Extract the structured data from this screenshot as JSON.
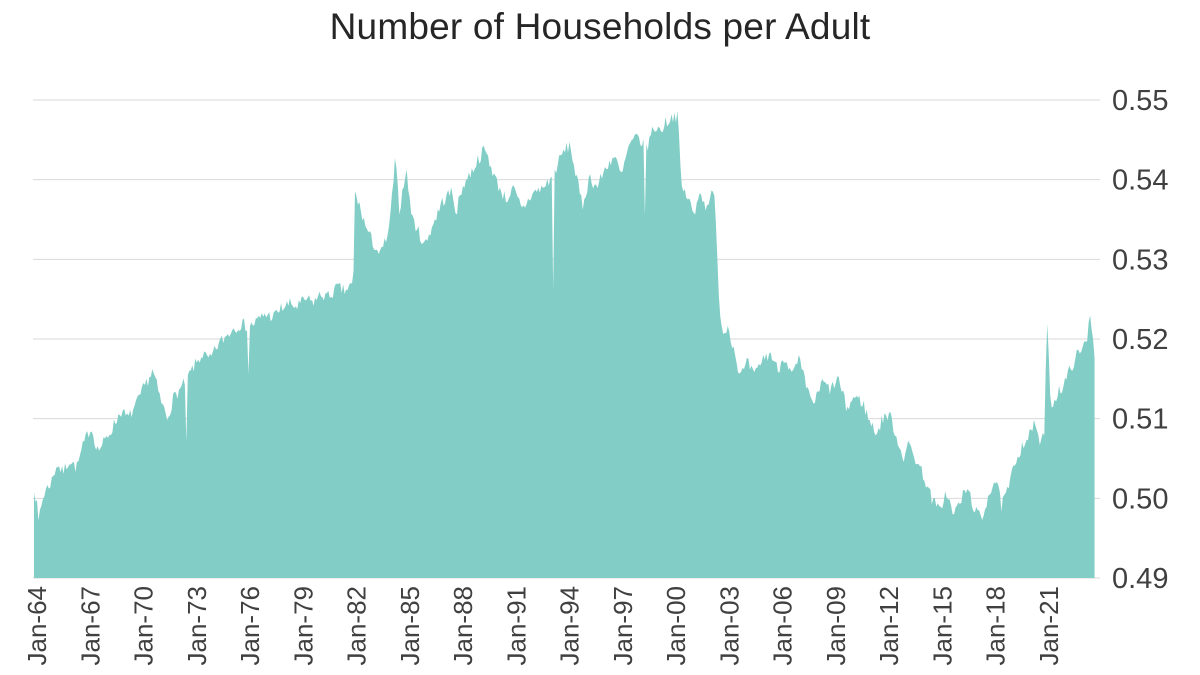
{
  "title": "Number of Households per Adult",
  "colors": {
    "area": "#82CEC7",
    "gridline": "#DADADA",
    "axis_text": "#404040",
    "title_text": "#262626",
    "background": "#FFFFFF"
  },
  "chart_data": {
    "type": "area",
    "title": "Number of Households per Adult",
    "series_name": "Number of Households per Adult",
    "x_unit": "month",
    "sampling": "monthly, Jan-1964 through late 2023",
    "x_tick_labels": [
      "Jan-64",
      "Jan-67",
      "Jan-70",
      "Jan-73",
      "Jan-76",
      "Jan-79",
      "Jan-82",
      "Jan-85",
      "Jan-88",
      "Jan-91",
      "Jan-94",
      "Jan-97",
      "Jan-00",
      "Jan-03",
      "Jan-06",
      "Jan-09",
      "Jan-12",
      "Jan-15",
      "Jan-18",
      "Jan-21"
    ],
    "x_tick_start_year": 1964,
    "x_tick_interval_years": 3,
    "y_ticks": [
      0.49,
      0.5,
      0.51,
      0.52,
      0.53,
      0.54,
      0.55
    ],
    "ylim": [
      0.49,
      0.55
    ],
    "x_range_years": [
      1964.0,
      2023.75
    ],
    "grid": "horizontal",
    "legend": "none",
    "ylabel": "",
    "xlabel": "",
    "anchors": [
      [
        1964.0,
        0.5015
      ],
      [
        1964.25,
        0.4978
      ],
      [
        1964.6,
        0.5008
      ],
      [
        1965.0,
        0.5022
      ],
      [
        1965.3,
        0.5044
      ],
      [
        1965.6,
        0.5032
      ],
      [
        1966.0,
        0.5048
      ],
      [
        1966.4,
        0.5038
      ],
      [
        1966.8,
        0.5068
      ],
      [
        1967.2,
        0.509
      ],
      [
        1967.6,
        0.506
      ],
      [
        1968.0,
        0.5072
      ],
      [
        1968.4,
        0.5088
      ],
      [
        1968.9,
        0.511
      ],
      [
        1969.3,
        0.51
      ],
      [
        1969.8,
        0.5119
      ],
      [
        1970.3,
        0.5144
      ],
      [
        1970.7,
        0.516
      ],
      [
        1971.1,
        0.5125
      ],
      [
        1971.5,
        0.5101
      ],
      [
        1971.9,
        0.5128
      ],
      [
        1972.3,
        0.5138
      ],
      [
        1973.0,
        0.5165
      ],
      [
        1973.5,
        0.5181
      ],
      [
        1973.9,
        0.5173
      ],
      [
        1974.4,
        0.5194
      ],
      [
        1974.8,
        0.5203
      ],
      [
        1975.2,
        0.5213
      ],
      [
        1975.7,
        0.5219
      ],
      [
        1976.1,
        0.5215
      ],
      [
        1976.6,
        0.5223
      ],
      [
        1977.0,
        0.5231
      ],
      [
        1977.5,
        0.5228
      ],
      [
        1977.9,
        0.5238
      ],
      [
        1978.4,
        0.5244
      ],
      [
        1978.8,
        0.524
      ],
      [
        1979.3,
        0.525
      ],
      [
        1979.7,
        0.5246
      ],
      [
        1980.2,
        0.5256
      ],
      [
        1980.6,
        0.5253
      ],
      [
        1981.1,
        0.5265
      ],
      [
        1981.5,
        0.526
      ],
      [
        1981.99,
        0.5269
      ],
      [
        1982.08,
        0.5384
      ],
      [
        1982.4,
        0.5362
      ],
      [
        1982.7,
        0.534
      ],
      [
        1983.0,
        0.5325
      ],
      [
        1983.5,
        0.5305
      ],
      [
        1984.0,
        0.5335
      ],
      [
        1984.35,
        0.5425
      ],
      [
        1984.6,
        0.536
      ],
      [
        1984.95,
        0.5415
      ],
      [
        1985.3,
        0.5352
      ],
      [
        1986.0,
        0.5318
      ],
      [
        1986.5,
        0.5345
      ],
      [
        1987.0,
        0.5372
      ],
      [
        1987.5,
        0.5385
      ],
      [
        1987.8,
        0.536
      ],
      [
        1988.2,
        0.5395
      ],
      [
        1988.6,
        0.5408
      ],
      [
        1989.0,
        0.5425
      ],
      [
        1989.4,
        0.5438
      ],
      [
        1990.1,
        0.5395
      ],
      [
        1990.6,
        0.5375
      ],
      [
        1991.0,
        0.5388
      ],
      [
        1991.5,
        0.5362
      ],
      [
        1992.1,
        0.5383
      ],
      [
        1992.7,
        0.539
      ],
      [
        1993.2,
        0.5404
      ],
      [
        1993.8,
        0.5434
      ],
      [
        1994.2,
        0.5444
      ],
      [
        1994.5,
        0.5409
      ],
      [
        1994.9,
        0.5366
      ],
      [
        1995.3,
        0.5404
      ],
      [
        1995.7,
        0.539
      ],
      [
        1996.3,
        0.5419
      ],
      [
        1996.7,
        0.5429
      ],
      [
        1997.1,
        0.5404
      ],
      [
        1997.5,
        0.5441
      ],
      [
        1998.0,
        0.5454
      ],
      [
        1998.5,
        0.5438
      ],
      [
        1998.9,
        0.5466
      ],
      [
        1999.3,
        0.5462
      ],
      [
        1999.6,
        0.5472
      ],
      [
        2000.05,
        0.5481
      ],
      [
        2000.3,
        0.5478
      ],
      [
        2000.45,
        0.5392
      ],
      [
        2000.9,
        0.5375
      ],
      [
        2001.2,
        0.5352
      ],
      [
        2001.5,
        0.539
      ],
      [
        2001.8,
        0.5365
      ],
      [
        2002.1,
        0.538
      ],
      [
        2002.35,
        0.5378
      ],
      [
        2002.5,
        0.5295
      ],
      [
        2002.65,
        0.5235
      ],
      [
        2002.85,
        0.5205
      ],
      [
        2003.1,
        0.5218
      ],
      [
        2003.4,
        0.519
      ],
      [
        2003.8,
        0.5153
      ],
      [
        2004.2,
        0.517
      ],
      [
        2004.6,
        0.5153
      ],
      [
        2005.0,
        0.5174
      ],
      [
        2005.5,
        0.5182
      ],
      [
        2005.9,
        0.5161
      ],
      [
        2006.3,
        0.518
      ],
      [
        2006.7,
        0.5153
      ],
      [
        2007.1,
        0.5174
      ],
      [
        2007.6,
        0.5132
      ],
      [
        2008.0,
        0.512
      ],
      [
        2008.4,
        0.5146
      ],
      [
        2008.9,
        0.5136
      ],
      [
        2009.3,
        0.5151
      ],
      [
        2009.8,
        0.5111
      ],
      [
        2010.2,
        0.5128
      ],
      [
        2010.7,
        0.512
      ],
      [
        2011.1,
        0.5095
      ],
      [
        2011.5,
        0.5082
      ],
      [
        2011.9,
        0.5105
      ],
      [
        2012.3,
        0.5101
      ],
      [
        2012.6,
        0.5075
      ],
      [
        2013.0,
        0.5052
      ],
      [
        2013.3,
        0.5068
      ],
      [
        2013.7,
        0.5048
      ],
      [
        2014.1,
        0.503
      ],
      [
        2014.6,
        0.4998
      ],
      [
        2015.0,
        0.4985
      ],
      [
        2015.4,
        0.5008
      ],
      [
        2015.8,
        0.4978
      ],
      [
        2016.2,
        0.4998
      ],
      [
        2016.6,
        0.5012
      ],
      [
        2017.0,
        0.4986
      ],
      [
        2017.4,
        0.4972
      ],
      [
        2017.8,
        0.5008
      ],
      [
        2018.2,
        0.5024
      ],
      [
        2018.5,
        0.499
      ],
      [
        2018.9,
        0.5012
      ],
      [
        2019.3,
        0.5048
      ],
      [
        2019.7,
        0.5068
      ],
      [
        2020.1,
        0.508
      ],
      [
        2020.45,
        0.5096
      ],
      [
        2020.7,
        0.5062
      ],
      [
        2020.95,
        0.509
      ],
      [
        2021.05,
        0.5225
      ],
      [
        2021.15,
        0.5185
      ],
      [
        2021.3,
        0.5113
      ],
      [
        2021.7,
        0.5135
      ],
      [
        2022.0,
        0.514
      ],
      [
        2022.3,
        0.5158
      ],
      [
        2022.7,
        0.5178
      ],
      [
        2023.05,
        0.5185
      ],
      [
        2023.35,
        0.5205
      ],
      [
        2023.5,
        0.5235
      ],
      [
        2023.65,
        0.5205
      ],
      [
        2023.75,
        0.5175
      ]
    ],
    "point_events": [
      [
        1964.25,
        0.4972
      ],
      [
        1972.55,
        0.5071
      ],
      [
        1976.1,
        0.5156
      ],
      [
        1993.25,
        0.5263
      ],
      [
        1998.4,
        0.5355
      ]
    ],
    "noise_amplitude": 0.0008
  }
}
